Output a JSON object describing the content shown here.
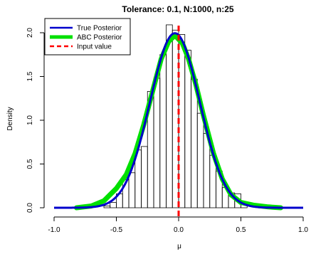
{
  "chart_data": {
    "type": "histogram",
    "title": "Tolerance: 0.1, N:1000, n:25",
    "xlabel": "μ",
    "ylabel": "Density",
    "xlim": [
      -1.0,
      1.0
    ],
    "ylim": [
      0.0,
      2.0
    ],
    "x_ticks": [
      "-1.0",
      "-0.5",
      "0.0",
      "0.5",
      "1.0"
    ],
    "y_ticks": [
      "0.0",
      "0.5",
      "1.0",
      "1.5",
      "2.0"
    ],
    "grid": false,
    "legend_position": "top-left",
    "legend": [
      {
        "label": "True Posterior",
        "color": "#0000cc",
        "style": "solid"
      },
      {
        "label": "ABC Posterior",
        "color": "#00e000",
        "style": "solid"
      },
      {
        "label": "Input value",
        "color": "#ff0000",
        "style": "dashed"
      }
    ],
    "histogram": {
      "bin_width": 0.05,
      "bins": [
        {
          "x0": -0.6,
          "x1": -0.55,
          "density": 0.02
        },
        {
          "x0": -0.55,
          "x1": -0.5,
          "density": 0.06
        },
        {
          "x0": -0.5,
          "x1": -0.45,
          "density": 0.16
        },
        {
          "x0": -0.45,
          "x1": -0.4,
          "density": 0.32
        },
        {
          "x0": -0.4,
          "x1": -0.35,
          "density": 0.4
        },
        {
          "x0": -0.35,
          "x1": -0.3,
          "density": 0.66
        },
        {
          "x0": -0.3,
          "x1": -0.25,
          "density": 0.7
        },
        {
          "x0": -0.25,
          "x1": -0.2,
          "density": 1.33
        },
        {
          "x0": -0.2,
          "x1": -0.15,
          "density": 1.48
        },
        {
          "x0": -0.15,
          "x1": -0.1,
          "density": 1.75
        },
        {
          "x0": -0.1,
          "x1": -0.05,
          "density": 2.09
        },
        {
          "x0": -0.05,
          "x1": 0.0,
          "density": 2.03
        },
        {
          "x0": 0.0,
          "x1": 0.05,
          "density": 1.98
        },
        {
          "x0": 0.05,
          "x1": 0.1,
          "density": 1.8
        },
        {
          "x0": 0.1,
          "x1": 0.15,
          "density": 1.47
        },
        {
          "x0": 0.15,
          "x1": 0.2,
          "density": 1.08
        },
        {
          "x0": 0.2,
          "x1": 0.25,
          "density": 0.85
        },
        {
          "x0": 0.25,
          "x1": 0.3,
          "density": 0.6
        },
        {
          "x0": 0.3,
          "x1": 0.35,
          "density": 0.42
        },
        {
          "x0": 0.35,
          "x1": 0.4,
          "density": 0.23
        },
        {
          "x0": 0.4,
          "x1": 0.45,
          "density": 0.17
        },
        {
          "x0": 0.45,
          "x1": 0.5,
          "density": 0.16
        },
        {
          "x0": 0.5,
          "x1": 0.55,
          "density": 0.05
        }
      ]
    },
    "series": [
      {
        "name": "True Posterior",
        "color": "#0000cc",
        "type": "line",
        "distribution": "normal",
        "mean": -0.03,
        "sd": 0.2,
        "x_range": [
          -1.0,
          1.0
        ]
      },
      {
        "name": "ABC Posterior",
        "color": "#00e000",
        "type": "line",
        "points": [
          {
            "x": -0.82,
            "y": 0.0
          },
          {
            "x": -0.7,
            "y": 0.02
          },
          {
            "x": -0.6,
            "y": 0.08
          },
          {
            "x": -0.5,
            "y": 0.22
          },
          {
            "x": -0.42,
            "y": 0.38
          },
          {
            "x": -0.35,
            "y": 0.62
          },
          {
            "x": -0.28,
            "y": 0.95
          },
          {
            "x": -0.2,
            "y": 1.38
          },
          {
            "x": -0.14,
            "y": 1.7
          },
          {
            "x": -0.08,
            "y": 1.9
          },
          {
            "x": -0.03,
            "y": 1.97
          },
          {
            "x": 0.03,
            "y": 1.88
          },
          {
            "x": 0.08,
            "y": 1.7
          },
          {
            "x": 0.14,
            "y": 1.4
          },
          {
            "x": 0.2,
            "y": 1.05
          },
          {
            "x": 0.28,
            "y": 0.62
          },
          {
            "x": 0.35,
            "y": 0.33
          },
          {
            "x": 0.42,
            "y": 0.15
          },
          {
            "x": 0.5,
            "y": 0.06
          },
          {
            "x": 0.6,
            "y": 0.03
          },
          {
            "x": 0.72,
            "y": 0.01
          },
          {
            "x": 0.82,
            "y": 0.0
          }
        ]
      },
      {
        "name": "Input value",
        "color": "#ff0000",
        "type": "vline",
        "x": 0.0
      }
    ]
  }
}
